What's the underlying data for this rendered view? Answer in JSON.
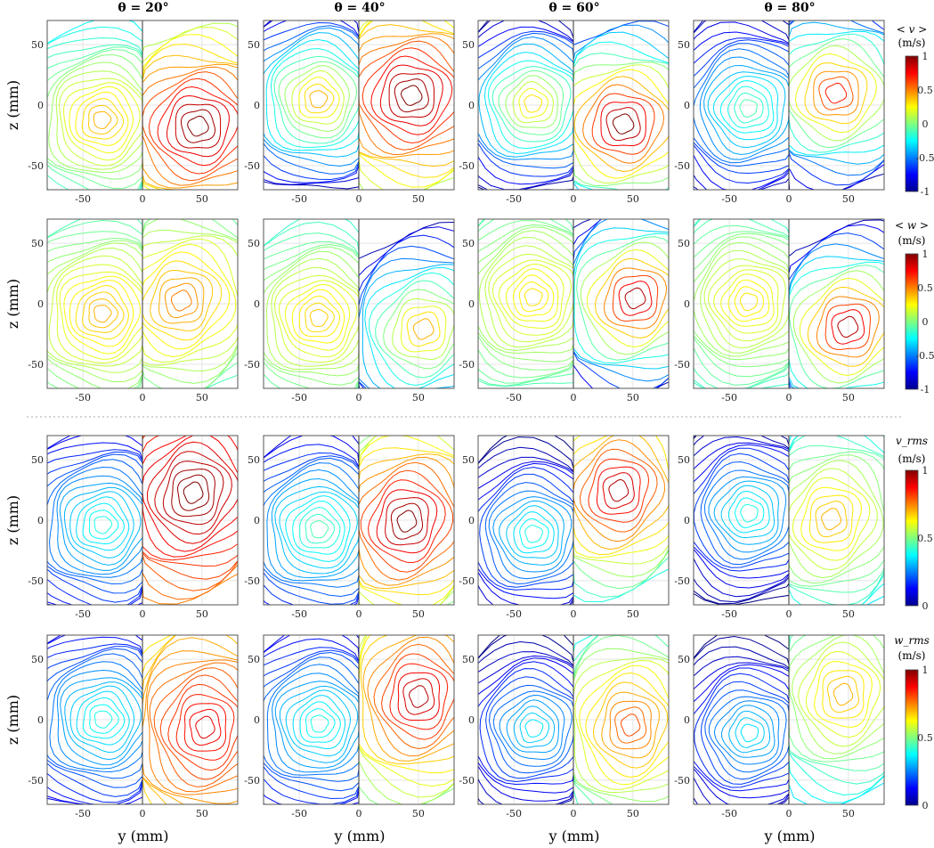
{
  "chart_data": {
    "type": "contour",
    "column_titles": [
      "θ = 20°",
      "θ = 40°",
      "θ = 60°",
      "θ = 80°"
    ],
    "theta_deg": [
      20,
      40,
      60,
      80
    ],
    "xlabel": "y (mm)",
    "ylabel": "z (mm)",
    "xlim": [
      -80,
      80
    ],
    "ylim": [
      -70,
      70
    ],
    "x_ticks": [
      -50,
      0,
      50
    ],
    "y_ticks": [
      50,
      0,
      -50
    ],
    "grid": true,
    "rows": [
      {
        "quantity": "<v>",
        "colorbar_label": [
          "< v >",
          "(m/s)"
        ],
        "clim": [
          -1,
          1
        ],
        "colorbar_ticks": [
          1,
          0.5,
          0,
          -0.5,
          -1
        ],
        "panels": [
          {
            "theta": 20,
            "left_range": [
              -0.25,
              0.4
            ],
            "right_range": [
              0.1,
              1.0
            ]
          },
          {
            "theta": 40,
            "left_range": [
              -0.9,
              0.4
            ],
            "right_range": [
              0.1,
              1.0
            ]
          },
          {
            "theta": 60,
            "left_range": [
              -1.0,
              0.3
            ],
            "right_range": [
              -0.6,
              1.0
            ]
          },
          {
            "theta": 80,
            "left_range": [
              -0.9,
              -0.1
            ],
            "right_range": [
              -0.9,
              0.7
            ]
          }
        ]
      },
      {
        "quantity": "<w>",
        "colorbar_label": [
          "< w >",
          "(m/s)"
        ],
        "clim": [
          -1,
          1
        ],
        "colorbar_ticks": [
          1,
          0.5,
          0,
          -0.5,
          -1
        ],
        "panels": [
          {
            "theta": 20,
            "left_range": [
              -0.1,
              0.4
            ],
            "right_range": [
              -0.1,
              0.5
            ]
          },
          {
            "theta": 40,
            "left_range": [
              -0.15,
              0.35
            ],
            "right_range": [
              -0.9,
              0.4
            ]
          },
          {
            "theta": 60,
            "left_range": [
              -0.1,
              0.3
            ],
            "right_range": [
              -0.9,
              0.9
            ]
          },
          {
            "theta": 80,
            "left_range": [
              -0.15,
              0.3
            ],
            "right_range": [
              -0.9,
              0.9
            ]
          }
        ]
      },
      {
        "quantity": "v_rms",
        "colorbar_label": [
          "v_rms",
          "(m/s)"
        ],
        "clim": [
          0,
          1
        ],
        "colorbar_ticks": [
          1,
          0.5,
          0
        ],
        "panels": [
          {
            "theta": 20,
            "left_range": [
              0.1,
              0.4
            ],
            "right_range": [
              0.75,
              1.0
            ]
          },
          {
            "theta": 40,
            "left_range": [
              0.1,
              0.45
            ],
            "right_range": [
              0.5,
              1.0
            ]
          },
          {
            "theta": 60,
            "left_range": [
              0.0,
              0.4
            ],
            "right_range": [
              0.4,
              0.95
            ]
          },
          {
            "theta": 80,
            "left_range": [
              0.0,
              0.4
            ],
            "right_range": [
              0.35,
              0.7
            ]
          }
        ]
      },
      {
        "quantity": "w_rms",
        "colorbar_label": [
          "w_rms",
          "(m/s)"
        ],
        "clim": [
          0,
          1
        ],
        "colorbar_ticks": [
          1,
          0.5,
          0
        ],
        "panels": [
          {
            "theta": 20,
            "left_range": [
              0.1,
              0.4
            ],
            "right_range": [
              0.65,
              0.9
            ]
          },
          {
            "theta": 40,
            "left_range": [
              0.1,
              0.4
            ],
            "right_range": [
              0.5,
              0.95
            ]
          },
          {
            "theta": 60,
            "left_range": [
              0.0,
              0.35
            ],
            "right_range": [
              0.4,
              0.8
            ]
          },
          {
            "theta": 80,
            "left_range": [
              0.0,
              0.35
            ],
            "right_range": [
              0.35,
              0.7
            ]
          }
        ]
      }
    ],
    "colormap": "jet",
    "colors": {
      "jet": [
        "#00008f",
        "#0000ff",
        "#00ffff",
        "#ffff00",
        "#ff0000",
        "#800000"
      ],
      "axis": "#555555",
      "grid": "#e4e4e4",
      "separator": "#aaaaaa"
    }
  }
}
